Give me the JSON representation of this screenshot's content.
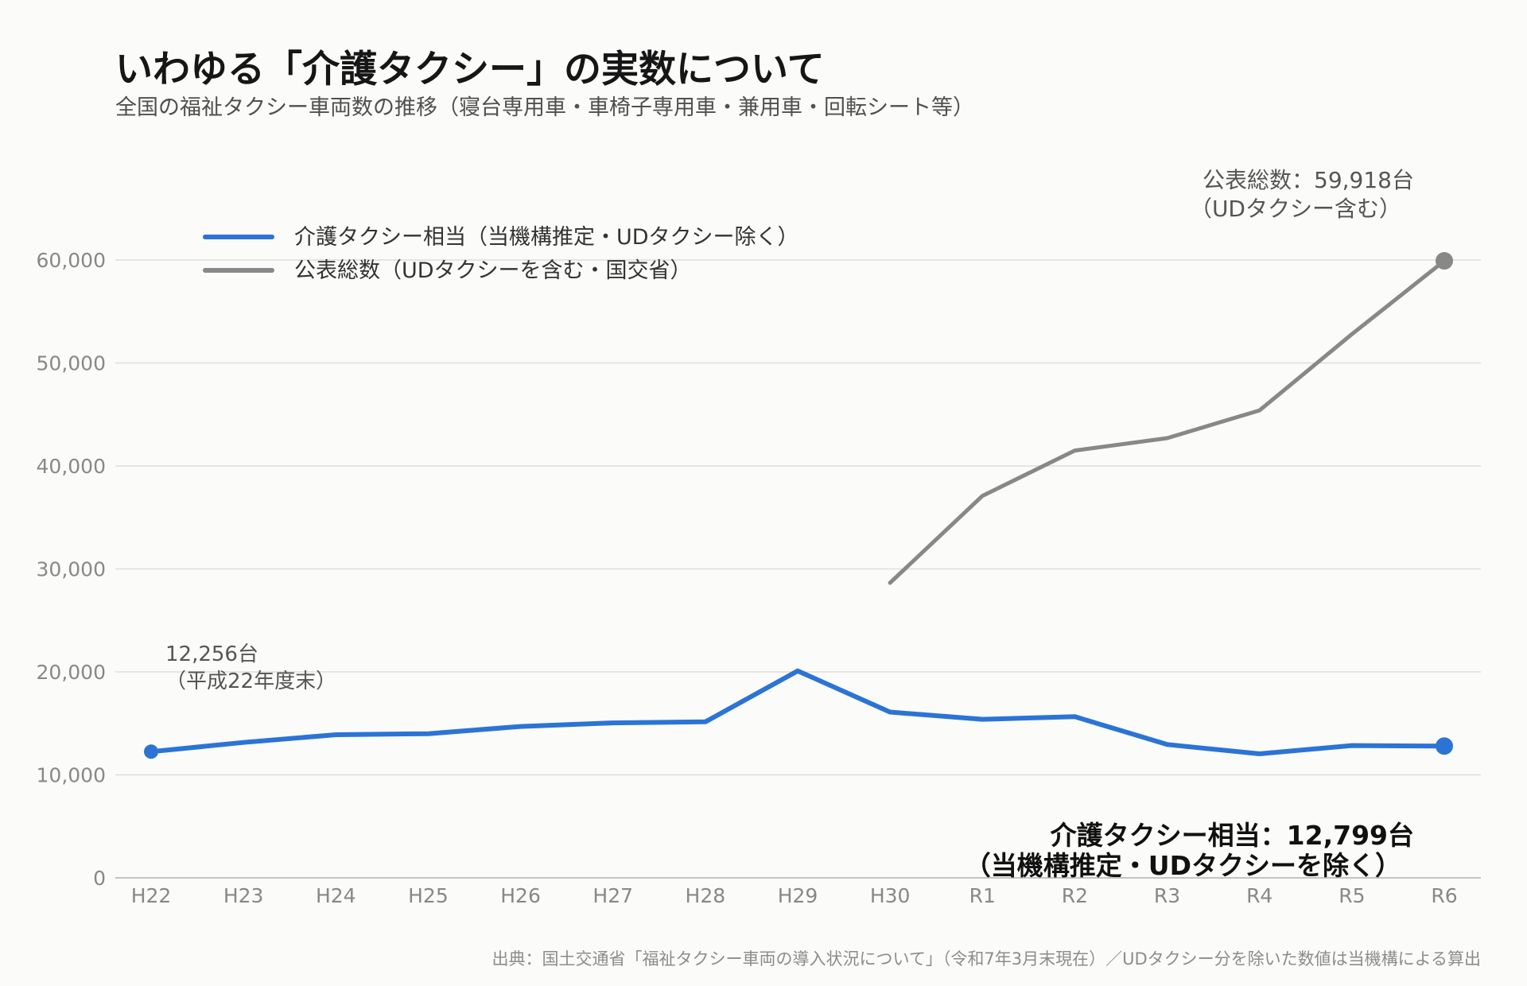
{
  "title": "いわゆる「介護タクシー」の実数について",
  "subtitle": "全国の福祉タクシー車両数の推移（寝台専用車・車椅子専用車・兼用車・回転シート等）",
  "source": "出典：国土交通省「福祉タクシー車両の導入状況について」（令和7年3月末現在）／UDタクシー分を除いた数値は当機構による算出",
  "chart_data": {
    "type": "line",
    "categories": [
      "H22",
      "H23",
      "H24",
      "H25",
      "H26",
      "H27",
      "H28",
      "H29",
      "H30",
      "R1",
      "R2",
      "R3",
      "R4",
      "R5",
      "R6"
    ],
    "ylim": [
      0,
      60000
    ],
    "yticks": [
      0,
      10000,
      20000,
      30000,
      40000,
      50000,
      60000
    ],
    "ytick_labels": [
      "0",
      "10,000",
      "20,000",
      "30,000",
      "40,000",
      "50,000",
      "60,000"
    ],
    "grid": true,
    "legend_position": "top-left",
    "series": [
      {
        "name": "介護タクシー相当（当機構推定・UDタクシー除く）",
        "color": "#2b74d6",
        "values": [
          12256,
          13150,
          13900,
          14000,
          14700,
          15050,
          15150,
          20100,
          16100,
          15400,
          15650,
          12950,
          12050,
          12850,
          12799
        ]
      },
      {
        "name": "公表総数（UDタクシーを含む・国交省）",
        "color": "#888888",
        "values": [
          null,
          null,
          null,
          null,
          null,
          null,
          null,
          null,
          28650,
          37100,
          41500,
          42700,
          45400,
          52800,
          59918
        ]
      }
    ],
    "annotations": {
      "start_value": "12,256台",
      "start_note": "（平成22年度末）",
      "total_value": "公表総数：59,918台",
      "total_note": "（UDタクシー含む）",
      "care_value": "介護タクシー相当：12,799台",
      "care_note": "（当機構推定・UDタクシーを除く）"
    }
  }
}
